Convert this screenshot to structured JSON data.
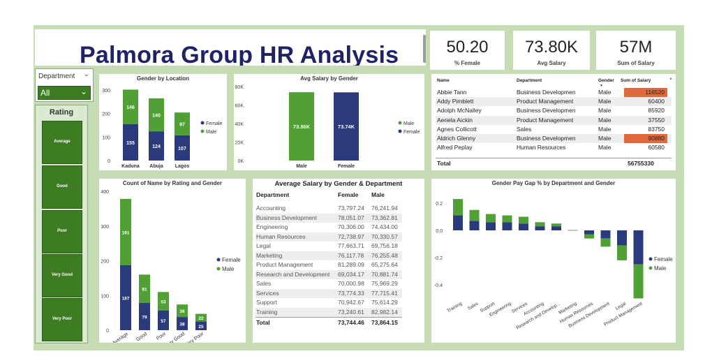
{
  "header": {
    "title": "Palmora Group HR Analysis"
  },
  "kpis": [
    {
      "value": "50.20",
      "label": "% Female"
    },
    {
      "value": "73.80K",
      "label": "Avg Salary"
    },
    {
      "value": "57M",
      "label": "Sum of Salary"
    }
  ],
  "slicer": {
    "label": "Department",
    "value": "All"
  },
  "rating_slicer": {
    "title": "Rating",
    "items": [
      "Average",
      "Good",
      "Poor",
      "Very Good",
      "Very Poor"
    ]
  },
  "colors": {
    "female": "#2b3a7a",
    "male": "#51a035",
    "highlight": "#e06a3c",
    "accent_dark_green": "#3e7c24"
  },
  "employee_table": {
    "headers": {
      "name": "Name",
      "department": "Department",
      "gender": "Gender",
      "salary": "Sum of Salary"
    },
    "rows": [
      {
        "name": "Abbie Tann",
        "department": "Business Developmen",
        "gender": "Male",
        "salary": "116520",
        "highlight": true
      },
      {
        "name": "Addy Pimblett",
        "department": "Product Management",
        "gender": "Male",
        "salary": "60400",
        "highlight": false
      },
      {
        "name": "Adolph McNalley",
        "department": "Business Developmen",
        "gender": "Male",
        "salary": "85920",
        "highlight": false
      },
      {
        "name": "Aeriela Aickin",
        "department": "Product Management",
        "gender": "Male",
        "salary": "37550",
        "highlight": false
      },
      {
        "name": "Agnes Collicott",
        "department": "Sales",
        "gender": "Male",
        "salary": "83750",
        "highlight": false
      },
      {
        "name": "Aldrich Glenny",
        "department": "Business Developmen",
        "gender": "Male",
        "salary": "90880",
        "highlight": true
      },
      {
        "name": "Alfred Peplay",
        "department": "Human Resources",
        "gender": "Male",
        "salary": "60580",
        "highlight": false
      }
    ],
    "total_label": "Total",
    "total_value": "56755330"
  },
  "salary_table": {
    "title": "Average Salary by Gender & Department",
    "headers": {
      "department": "Department",
      "female": "Female",
      "male": "Male"
    },
    "rows": [
      {
        "department": "Accounting",
        "female": "73,797.24",
        "male": "76,241.94"
      },
      {
        "department": "Business Development",
        "female": "78,051.07",
        "male": "73,362.81"
      },
      {
        "department": "Engineering",
        "female": "70,306.00",
        "male": "74,434.00"
      },
      {
        "department": "Human Resources",
        "female": "72,738.97",
        "male": "70,330.57"
      },
      {
        "department": "Legal",
        "female": "77,663.71",
        "male": "69,756.18"
      },
      {
        "department": "Marketing",
        "female": "76,117.78",
        "male": "76,255.48"
      },
      {
        "department": "Product Management",
        "female": "81,289.09",
        "male": "65,275.64"
      },
      {
        "department": "Research and Development",
        "female": "69,034.17",
        "male": "70,881.74"
      },
      {
        "department": "Sales",
        "female": "70,000.98",
        "male": "75,969.29"
      },
      {
        "department": "Services",
        "female": "73,774.33",
        "male": "77,715.41"
      },
      {
        "department": "Support",
        "female": "70,942.67",
        "male": "75,614.29"
      },
      {
        "department": "Training",
        "female": "73,240.61",
        "male": "82,982.14"
      }
    ],
    "total": {
      "label": "Total",
      "female": "73,744.46",
      "male": "73,864.15"
    }
  },
  "chart_data": [
    {
      "id": "gender_by_location",
      "type": "bar",
      "stacked": true,
      "title": "Gender by Location",
      "categories": [
        "Kaduna",
        "Abuja",
        "Lagos"
      ],
      "series": [
        {
          "name": "Female",
          "values": [
            155,
            124,
            107
          ]
        },
        {
          "name": "Male",
          "values": [
            146,
            140,
            97
          ]
        }
      ],
      "yticks": [
        "0",
        "100",
        "200",
        "300"
      ],
      "ylim": [
        0,
        320
      ],
      "legend": "right"
    },
    {
      "id": "avg_salary_by_gender",
      "type": "bar",
      "title": "Avg Salary by Gender",
      "categories": [
        "Male",
        "Female"
      ],
      "values": [
        73860,
        73740
      ],
      "data_labels": [
        "73.86K",
        "73.74K"
      ],
      "yticks": [
        "0K",
        "20K",
        "40K",
        "60K",
        "80K"
      ],
      "ylim": [
        0,
        80000
      ],
      "legend_entries": [
        "Male",
        "Female"
      ],
      "legend": "right"
    },
    {
      "id": "count_by_rating_gender",
      "type": "bar",
      "stacked": true,
      "title": "Count of Name by Rating and Gender",
      "categories": [
        "Average",
        "Good",
        "Poor",
        "Very Good",
        "Very Poor"
      ],
      "series": [
        {
          "name": "Female",
          "values": [
            187,
            79,
            57,
            38,
            25
          ]
        },
        {
          "name": "Male",
          "values": [
            191,
            81,
            53,
            36,
            22
          ]
        }
      ],
      "yticks": [
        "0",
        "100",
        "200",
        "300",
        "400"
      ],
      "ylim": [
        0,
        400
      ],
      "legend": "right"
    },
    {
      "id": "gender_pay_gap",
      "type": "bar",
      "stacked": true,
      "title": "Gender Pay Gap % by Department and Gender",
      "categories": [
        "Training",
        "Sales",
        "Support",
        "Engineering",
        "Services",
        "Accounting",
        "Research and Develop...",
        "Marketing",
        "Human Resources",
        "Business Development",
        "Legal",
        "Product Management"
      ],
      "series": [
        {
          "name": "Female",
          "values": [
            0.11,
            0.07,
            0.06,
            0.06,
            0.05,
            0.03,
            0.03,
            0.0,
            -0.03,
            -0.06,
            -0.11,
            -0.25
          ]
        },
        {
          "name": "Male",
          "values": [
            0.12,
            0.08,
            0.06,
            0.05,
            0.05,
            0.03,
            0.02,
            0.0,
            -0.03,
            -0.06,
            -0.11,
            -0.25
          ]
        }
      ],
      "yticks": [
        "-0.4",
        "-0.2",
        "0.0",
        "0.2"
      ],
      "ylim": [
        -0.5,
        0.25
      ],
      "legend": "right"
    }
  ]
}
